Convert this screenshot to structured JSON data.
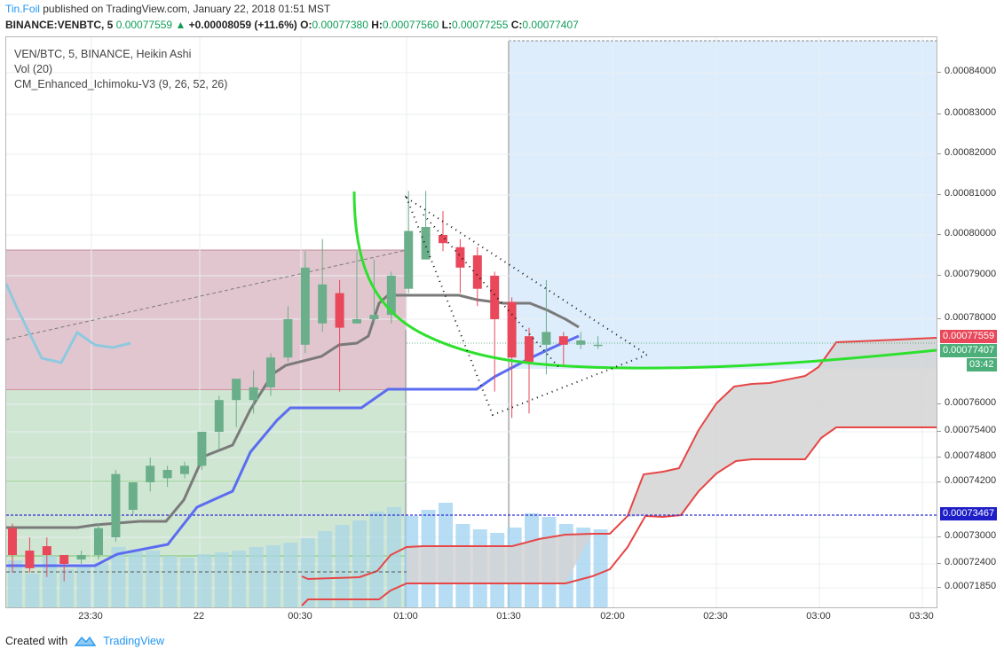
{
  "header": {
    "author": "Tin.Foil",
    "published": "published on TradingView.com, January 22, 2018 01:51 MST"
  },
  "ohlc": {
    "symbol": "BINANCE:VENBTC, 5",
    "last": "0.00077559",
    "change_arrow": "▲",
    "change": "+0.00008059 (+11.6%)",
    "o_label": "O:",
    "o": "0.00077380",
    "h_label": "H:",
    "h": "0.00077560",
    "l_label": "L:",
    "l": "0.00077255",
    "c_label": "C:",
    "c": "0.00077407"
  },
  "legend": {
    "title": "VEN/BTC, 5, BINANCE, Heikin Ashi",
    "vol": "Vol (20)",
    "indicator": "CM_Enhanced_Ichimoku-V3 (9, 26, 52, 26)"
  },
  "price_axis": {
    "ticks": [
      "0.00084000",
      "0.00083000",
      "0.00082000",
      "0.00081000",
      "0.00080000",
      "0.00079000",
      "0.00078000",
      "0.00076000",
      "0.00075400",
      "0.00074800",
      "0.00074200",
      "0.00073000",
      "0.00072400",
      "0.00071850"
    ],
    "badges": {
      "last": "0.00077559",
      "close": "0.00077407",
      "countdown": "03:42",
      "hline": "0.00073467"
    }
  },
  "time_axis": {
    "labels": [
      "23:30",
      "22",
      "00:30",
      "01:00",
      "01:30",
      "02:00",
      "02:30",
      "03:00",
      "03:30"
    ]
  },
  "footer": {
    "created": "Created with",
    "brand": "TradingView"
  },
  "colors": {
    "up": "#6aae8a",
    "down": "#e8485a",
    "tenkan": "#5b6cf0",
    "kijun": "#7a7a7a",
    "span_line": "#e64646",
    "cloud": "#cfcfcf",
    "long_zone": "#cde6d1",
    "short_zone": "#e2c6cf",
    "projection": "#d9eafc",
    "arc": "#2ee02e",
    "hline": "#1e1ec8"
  },
  "chart_data": {
    "type": "candlestick",
    "title": "VEN/BTC, 5, BINANCE, Heikin Ashi",
    "timeframe": "5",
    "x_labels": [
      "23:30",
      "22",
      "00:30",
      "01:00",
      "01:30",
      "02:00",
      "02:30",
      "03:00",
      "03:30"
    ],
    "candles": [
      {
        "o": 0.000732,
        "h": 0.000733,
        "l": 0.000722,
        "c": 0.000726
      },
      {
        "o": 0.000727,
        "h": 0.00073,
        "l": 0.000722,
        "c": 0.000723
      },
      {
        "o": 0.000728,
        "h": 0.00073,
        "l": 0.000721,
        "c": 0.000726
      },
      {
        "o": 0.000726,
        "h": 0.000726,
        "l": 0.00072,
        "c": 0.000724
      },
      {
        "o": 0.000725,
        "h": 0.000727,
        "l": 0.000724,
        "c": 0.000726
      },
      {
        "o": 0.000726,
        "h": 0.000733,
        "l": 0.000725,
        "c": 0.000732
      },
      {
        "o": 0.00073,
        "h": 0.000745,
        "l": 0.000729,
        "c": 0.000744
      },
      {
        "o": 0.000736,
        "h": 0.000742,
        "l": 0.000735,
        "c": 0.000742
      },
      {
        "o": 0.000742,
        "h": 0.000748,
        "l": 0.00074,
        "c": 0.000746
      },
      {
        "o": 0.000743,
        "h": 0.000746,
        "l": 0.000741,
        "c": 0.000745
      },
      {
        "o": 0.000744,
        "h": 0.000747,
        "l": 0.000743,
        "c": 0.000746
      },
      {
        "o": 0.000746,
        "h": 0.000754,
        "l": 0.000745,
        "c": 0.000754
      },
      {
        "o": 0.000754,
        "h": 0.000762,
        "l": 0.00075,
        "c": 0.000761
      },
      {
        "o": 0.000761,
        "h": 0.000765,
        "l": 0.000755,
        "c": 0.000766
      },
      {
        "o": 0.000761,
        "h": 0.000768,
        "l": 0.000758,
        "c": 0.000764
      },
      {
        "o": 0.000764,
        "h": 0.000772,
        "l": 0.000762,
        "c": 0.000771
      },
      {
        "o": 0.000771,
        "h": 0.000783,
        "l": 0.00077,
        "c": 0.00078
      },
      {
        "o": 0.000774,
        "h": 0.000796,
        "l": 0.000772,
        "c": 0.000792
      },
      {
        "o": 0.000779,
        "h": 0.000799,
        "l": 0.000777,
        "c": 0.000788
      },
      {
        "o": 0.000786,
        "h": 0.000789,
        "l": 0.000763,
        "c": 0.000778
      },
      {
        "o": 0.000779,
        "h": 0.000796,
        "l": 0.000779,
        "c": 0.00078
      },
      {
        "o": 0.00078,
        "h": 0.000794,
        "l": 0.000779,
        "c": 0.000781
      },
      {
        "o": 0.000781,
        "h": 0.000791,
        "l": 0.000779,
        "c": 0.00079
      },
      {
        "o": 0.000787,
        "h": 0.000811,
        "l": 0.000786,
        "c": 0.000801
      },
      {
        "o": 0.000794,
        "h": 0.000811,
        "l": 0.000794,
        "c": 0.000802
      },
      {
        "o": 0.0008,
        "h": 0.000806,
        "l": 0.000796,
        "c": 0.000798
      },
      {
        "o": 0.000797,
        "h": 0.000799,
        "l": 0.000786,
        "c": 0.000792
      },
      {
        "o": 0.000795,
        "h": 0.000797,
        "l": 0.000783,
        "c": 0.000787
      },
      {
        "o": 0.00079,
        "h": 0.000791,
        "l": 0.000763,
        "c": 0.00078
      },
      {
        "o": 0.000784,
        "h": 0.000785,
        "l": 0.000757,
        "c": 0.000771
      },
      {
        "o": 0.000776,
        "h": 0.000778,
        "l": 0.000758,
        "c": 0.00077
      },
      {
        "o": 0.000774,
        "h": 0.000789,
        "l": 0.000767,
        "c": 0.000777
      },
      {
        "o": 0.000776,
        "h": 0.000777,
        "l": 0.000769,
        "c": 0.000774
      },
      {
        "o": 0.000774,
        "h": 0.000777,
        "l": 0.000773,
        "c": 0.000775
      },
      {
        "o": 0.000774,
        "h": 0.000776,
        "l": 0.000773,
        "c": 0.000774
      }
    ],
    "ylim": [
      0.000714,
      0.000848
    ],
    "grid": true
  }
}
